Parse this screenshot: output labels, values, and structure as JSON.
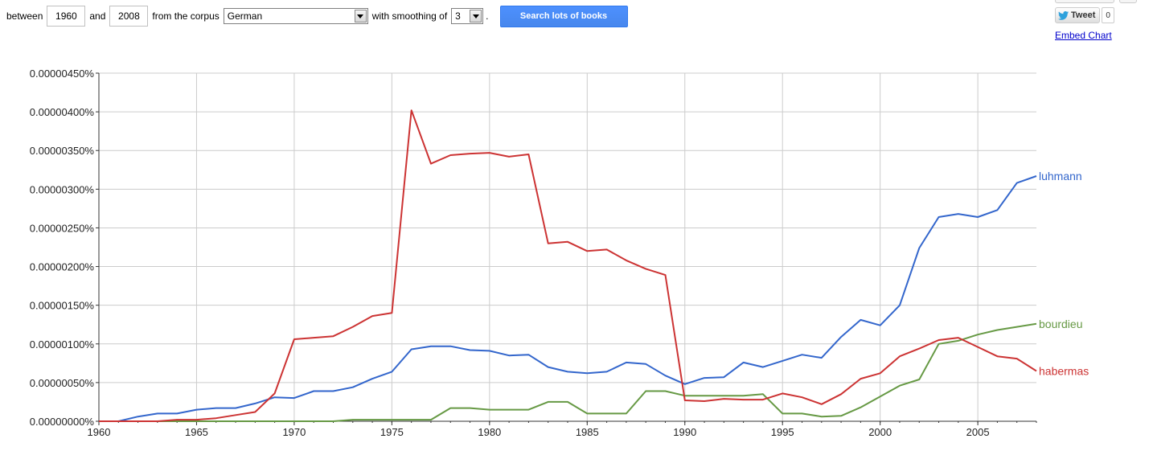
{
  "controls": {
    "between_label": "between",
    "start_year": "1960",
    "and_label": "and",
    "end_year": "2008",
    "corpus_label": "from the corpus",
    "corpus_value": "German",
    "smoothing_label": "with smoothing of",
    "smoothing_value": "3",
    "period": ".",
    "search_button": "Search lots of books"
  },
  "social": {
    "tweet_label": "Tweet",
    "tweet_count": "0",
    "embed_label": "Embed Chart"
  },
  "colors": {
    "luhmann": "#3366cc",
    "habermas": "#cc3333",
    "bourdieu": "#669944",
    "grid": "#cccccc",
    "axis": "#333333"
  },
  "chart_data": {
    "type": "line",
    "x": [
      1960,
      1961,
      1962,
      1963,
      1964,
      1965,
      1966,
      1967,
      1968,
      1969,
      1970,
      1971,
      1972,
      1973,
      1974,
      1975,
      1976,
      1977,
      1978,
      1979,
      1980,
      1981,
      1982,
      1983,
      1984,
      1985,
      1986,
      1987,
      1988,
      1989,
      1990,
      1991,
      1992,
      1993,
      1994,
      1995,
      1996,
      1997,
      1998,
      1999,
      2000,
      2001,
      2002,
      2003,
      2004,
      2005,
      2006,
      2007,
      2008
    ],
    "xlim": [
      1960,
      2008
    ],
    "xticks": [
      "1960",
      "1965",
      "1970",
      "1975",
      "1980",
      "1985",
      "1990",
      "1995",
      "2000",
      "2005"
    ],
    "ylim": [
      0,
      4.5e-06
    ],
    "yticks": [
      "0.00000000%",
      "0.00000050%",
      "0.00000100%",
      "0.00000150%",
      "0.00000200%",
      "0.00000250%",
      "0.00000300%",
      "0.00000350%",
      "0.00000400%",
      "0.00000450%"
    ],
    "grid": true,
    "series": [
      {
        "name": "luhmann",
        "values": [
          0,
          0,
          6e-08,
          1e-07,
          1e-07,
          1.5e-07,
          1.7e-07,
          1.7e-07,
          2.3e-07,
          3.1e-07,
          3e-07,
          3.9e-07,
          3.9e-07,
          4.4e-07,
          5.5e-07,
          6.4e-07,
          9.3e-07,
          9.7e-07,
          9.7e-07,
          9.2e-07,
          9.1e-07,
          8.5e-07,
          8.6e-07,
          7e-07,
          6.4e-07,
          6.2e-07,
          6.4e-07,
          7.6e-07,
          7.4e-07,
          5.9e-07,
          4.8e-07,
          5.6e-07,
          5.7e-07,
          7.6e-07,
          7e-07,
          7.8e-07,
          8.6e-07,
          8.2e-07,
          1.09e-06,
          1.31e-06,
          1.24e-06,
          1.5e-06,
          2.24e-06,
          2.64e-06,
          2.68e-06,
          2.64e-06,
          2.73e-06,
          3.08e-06,
          3.17e-06
        ]
      },
      {
        "name": "habermas",
        "values": [
          0,
          0,
          0,
          0,
          2e-08,
          2e-08,
          4e-08,
          8e-08,
          1.2e-07,
          3.6e-07,
          1.06e-06,
          1.08e-06,
          1.1e-06,
          1.22e-06,
          1.36e-06,
          1.4e-06,
          4.02e-06,
          3.33e-06,
          3.44e-06,
          3.46e-06,
          3.47e-06,
          3.42e-06,
          3.45e-06,
          2.3e-06,
          2.32e-06,
          2.2e-06,
          2.22e-06,
          2.08e-06,
          1.97e-06,
          1.89e-06,
          2.7e-07,
          2.6e-07,
          2.9e-07,
          2.8e-07,
          2.8e-07,
          3.6e-07,
          3.1e-07,
          2.2e-07,
          3.5e-07,
          5.5e-07,
          6.2e-07,
          8.4e-07,
          9.4e-07,
          1.05e-06,
          1.08e-06,
          9.6e-07,
          8.4e-07,
          8.1e-07,
          6.5e-07
        ]
      },
      {
        "name": "bourdieu",
        "values": [
          0,
          0,
          0,
          0,
          0,
          0,
          0,
          0,
          0,
          0,
          0,
          0,
          0,
          2e-08,
          2e-08,
          2e-08,
          2e-08,
          2e-08,
          1.7e-07,
          1.7e-07,
          1.5e-07,
          1.5e-07,
          1.5e-07,
          2.5e-07,
          2.5e-07,
          1e-07,
          1e-07,
          1e-07,
          3.9e-07,
          3.9e-07,
          3.3e-07,
          3.3e-07,
          3.3e-07,
          3.3e-07,
          3.5e-07,
          1e-07,
          1e-07,
          6e-08,
          7e-08,
          1.8e-07,
          3.2e-07,
          4.6e-07,
          5.4e-07,
          1e-06,
          1.04e-06,
          1.12e-06,
          1.18e-06,
          1.22e-06,
          1.26e-06
        ]
      }
    ]
  }
}
